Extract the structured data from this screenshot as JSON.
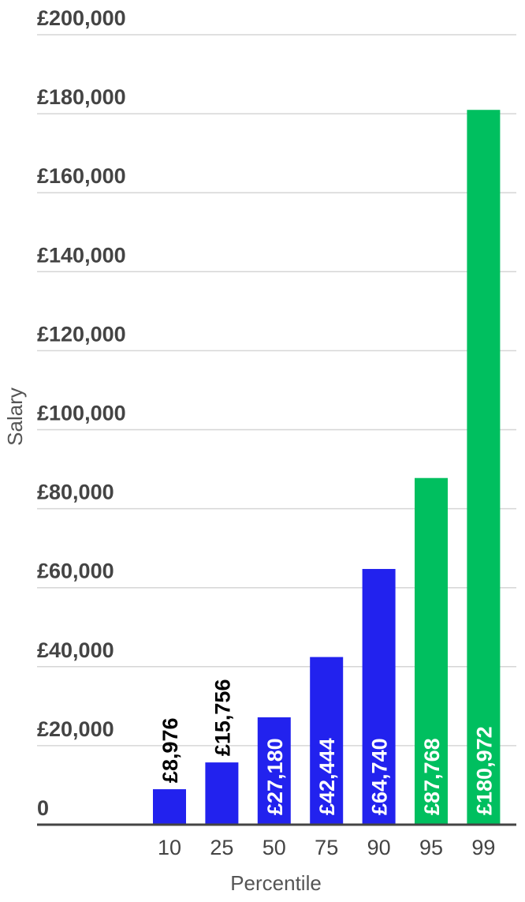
{
  "chart_data": {
    "type": "bar",
    "title": "",
    "xlabel": "Percentile",
    "ylabel": "Salary",
    "categories": [
      "10",
      "25",
      "50",
      "75",
      "90",
      "95",
      "99"
    ],
    "values": [
      8976,
      15756,
      27180,
      42444,
      64740,
      87768,
      180972
    ],
    "data_labels": [
      "£8,976",
      "£15,756",
      "£27,180",
      "£42,444",
      "£64,740",
      "£87,768",
      "£180,972"
    ],
    "bar_colors": [
      "#2222EE",
      "#2222EE",
      "#2222EE",
      "#2222EE",
      "#2222EE",
      "#00BF5F",
      "#00BF5F"
    ],
    "ylim": [
      0,
      200000
    ],
    "yticks": [
      0,
      20000,
      40000,
      60000,
      80000,
      100000,
      120000,
      140000,
      160000,
      180000,
      200000
    ],
    "ytick_labels": [
      "0",
      "£20,000",
      "£40,000",
      "£60,000",
      "£80,000",
      "£100,000",
      "£120,000",
      "£140,000",
      "£160,000",
      "£180,000",
      "£200,000"
    ],
    "grid": true,
    "legend": "none"
  }
}
